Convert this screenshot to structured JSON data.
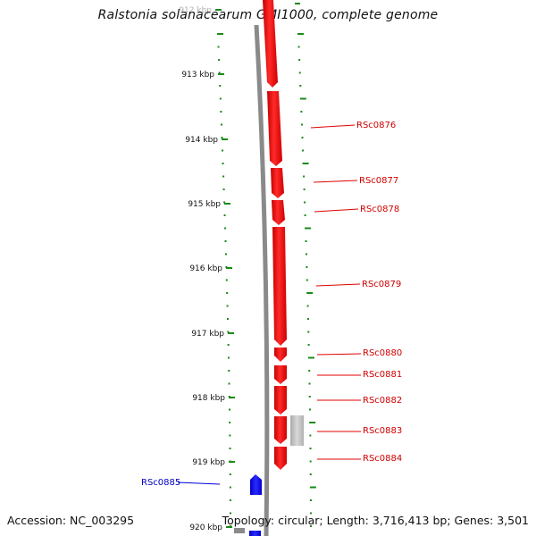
{
  "title": "Ralstonia solanacearum GMI1000, complete genome",
  "footer": {
    "accession": "Accession: NC_003295",
    "summary": "Topology: circular; Length: 3,716,413 bp; Genes: 3,501"
  },
  "colors": {
    "forward_gene": "#ff0000",
    "reverse_gene": "#0000ff",
    "backbone": "#808080",
    "ticks": "#1a8a1a",
    "misc_feature": "#bdbdbd"
  },
  "ruler": {
    "labels": [
      "912 kbp",
      "913 kbp",
      "914 kbp",
      "915 kbp",
      "916 kbp",
      "917 kbp",
      "918 kbp",
      "919 kbp",
      "920 kbp"
    ]
  },
  "genes": [
    {
      "id": "RSc0876",
      "strand": "+",
      "color_key": "forward_gene"
    },
    {
      "id": "RSc0877",
      "strand": "+",
      "color_key": "forward_gene"
    },
    {
      "id": "RSc0878",
      "strand": "+",
      "color_key": "forward_gene"
    },
    {
      "id": "RSc0879",
      "strand": "+",
      "color_key": "forward_gene"
    },
    {
      "id": "RSc0880",
      "strand": "+",
      "color_key": "forward_gene"
    },
    {
      "id": "RSc0881",
      "strand": "+",
      "color_key": "forward_gene"
    },
    {
      "id": "RSc0882",
      "strand": "+",
      "color_key": "forward_gene"
    },
    {
      "id": "RSc0883",
      "strand": "+",
      "color_key": "forward_gene"
    },
    {
      "id": "RSc0884",
      "strand": "+",
      "color_key": "forward_gene"
    },
    {
      "id": "RSc0885",
      "strand": "-",
      "color_key": "reverse_gene"
    }
  ]
}
